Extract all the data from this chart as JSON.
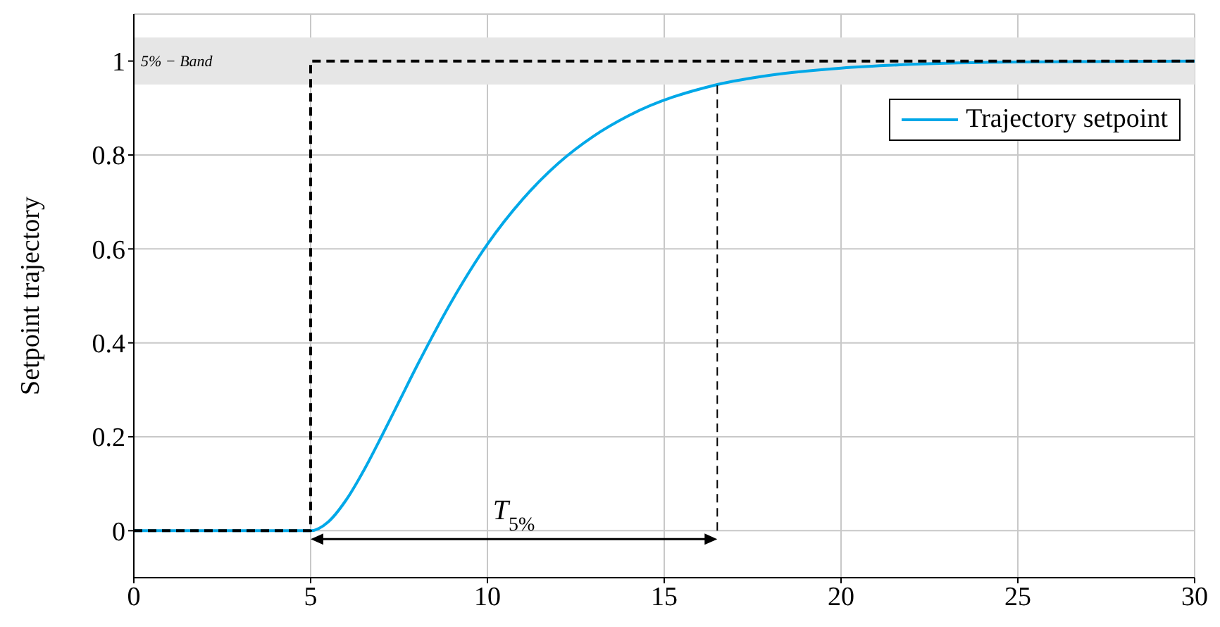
{
  "chart_data": {
    "type": "line",
    "ylabel": "Setpoint trajectory",
    "xlim": [
      0,
      30
    ],
    "xticks": [
      0,
      5,
      10,
      15,
      20,
      25,
      30
    ],
    "ylim": [
      -0.1,
      1.1
    ],
    "yticks": [
      0,
      0.2,
      0.4,
      0.6,
      0.8,
      1
    ],
    "grid": true,
    "legend": "top right",
    "marker": "none",
    "series": [
      {
        "type": "step",
        "color": "#000000",
        "line_style": "dashed",
        "x": [
          0,
          5,
          30
        ],
        "values": [
          0,
          1,
          1
        ]
      },
      {
        "type": "line",
        "color": "#000000",
        "line_style": "dashed",
        "x": [
          16.5,
          16.5
        ],
        "values": [
          0,
          0.95
        ]
      },
      {
        "type": "line",
        "name": "Trajectory setpoint",
        "color": "#00a8e8",
        "line_style": "solid",
        "x": [
          0,
          5,
          5.5,
          6,
          6.5,
          7,
          7.5,
          8,
          9,
          10,
          11,
          12,
          13,
          14,
          16.5,
          18,
          20,
          22,
          25,
          30
        ],
        "values": [
          0,
          0,
          0.019,
          0.065,
          0.128,
          0.2,
          0.275,
          0.35,
          0.49,
          0.61,
          0.706,
          0.782,
          0.84,
          0.884,
          0.95,
          0.97,
          0.985,
          0.993,
          0.998,
          1
        ]
      }
    ],
    "bands": [
      {
        "axis": "y",
        "from": 0.95,
        "to": 1.05,
        "label": "5% − Band",
        "color": "#e6e6e6"
      }
    ],
    "annotations": [
      "T$_{5%}$"
    ]
  }
}
